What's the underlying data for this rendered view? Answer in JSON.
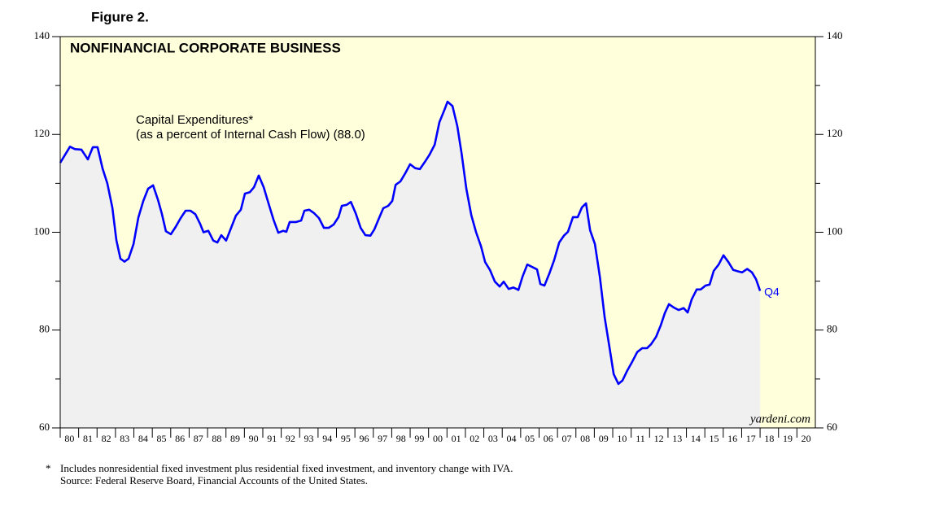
{
  "chart_data": {
    "type": "line",
    "figure_label": "Figure 2.",
    "title": "NONFINANCIAL CORPORATE BUSINESS",
    "annotation": [
      "Capital Expenditures*",
      "(as a percent of Internal Cash Flow) (88.0)"
    ],
    "end_label": "Q4",
    "watermark": "yardeni.com",
    "footnote_mark": "*",
    "footnote": "Includes nonresidential fixed investment plus residential fixed investment, and inventory change with IVA.",
    "source": "Source: Federal Reserve Board, Financial Accounts of the United States.",
    "xlim": [
      1980,
      2021
    ],
    "xticks": [
      {
        "value": 1980,
        "label": "80"
      },
      {
        "value": 1981,
        "label": "81"
      },
      {
        "value": 1982,
        "label": "82"
      },
      {
        "value": 1983,
        "label": "83"
      },
      {
        "value": 1984,
        "label": "84"
      },
      {
        "value": 1985,
        "label": "85"
      },
      {
        "value": 1986,
        "label": "86"
      },
      {
        "value": 1987,
        "label": "87"
      },
      {
        "value": 1988,
        "label": "88"
      },
      {
        "value": 1989,
        "label": "89"
      },
      {
        "value": 1990,
        "label": "90"
      },
      {
        "value": 1991,
        "label": "91"
      },
      {
        "value": 1992,
        "label": "92"
      },
      {
        "value": 1993,
        "label": "93"
      },
      {
        "value": 1994,
        "label": "94"
      },
      {
        "value": 1995,
        "label": "95"
      },
      {
        "value": 1996,
        "label": "96"
      },
      {
        "value": 1997,
        "label": "97"
      },
      {
        "value": 1998,
        "label": "98"
      },
      {
        "value": 1999,
        "label": "99"
      },
      {
        "value": 2000,
        "label": "00"
      },
      {
        "value": 2001,
        "label": "01"
      },
      {
        "value": 2002,
        "label": "02"
      },
      {
        "value": 2003,
        "label": "03"
      },
      {
        "value": 2004,
        "label": "04"
      },
      {
        "value": 2005,
        "label": "05"
      },
      {
        "value": 2006,
        "label": "06"
      },
      {
        "value": 2007,
        "label": "07"
      },
      {
        "value": 2008,
        "label": "08"
      },
      {
        "value": 2009,
        "label": "09"
      },
      {
        "value": 2010,
        "label": "10"
      },
      {
        "value": 2011,
        "label": "11"
      },
      {
        "value": 2012,
        "label": "12"
      },
      {
        "value": 2013,
        "label": "13"
      },
      {
        "value": 2014,
        "label": "14"
      },
      {
        "value": 2015,
        "label": "15"
      },
      {
        "value": 2016,
        "label": "16"
      },
      {
        "value": 2017,
        "label": "17"
      },
      {
        "value": 2018,
        "label": "18"
      },
      {
        "value": 2019,
        "label": "19"
      },
      {
        "value": 2020,
        "label": "20"
      }
    ],
    "ylim": [
      60,
      140
    ],
    "yticks": [
      60,
      80,
      100,
      120,
      140
    ],
    "y_minor_ticks": [
      70,
      90,
      110,
      130
    ],
    "plot_background": "#ffffdc",
    "area_color": "#f0f0f0",
    "series": [
      {
        "name": "Capital Expenditures",
        "color": "#0000ff",
        "x": [
          1980.0,
          1980.53,
          1980.8,
          1981.15,
          1981.5,
          1981.77,
          1982.03,
          1982.3,
          1982.56,
          1982.83,
          1983.05,
          1983.27,
          1983.49,
          1983.71,
          1983.98,
          1984.24,
          1984.51,
          1984.77,
          1985.04,
          1985.3,
          1985.52,
          1985.74,
          1986.01,
          1986.27,
          1986.54,
          1986.81,
          1987.07,
          1987.34,
          1987.6,
          1987.78,
          1988.04,
          1988.31,
          1988.53,
          1988.75,
          1989.01,
          1989.28,
          1989.54,
          1989.81,
          1990.03,
          1990.3,
          1990.52,
          1990.78,
          1991.05,
          1991.31,
          1991.58,
          1991.84,
          1992.11,
          1992.28,
          1992.46,
          1992.81,
          1993.08,
          1993.26,
          1993.52,
          1993.79,
          1994.05,
          1994.32,
          1994.58,
          1994.85,
          1995.11,
          1995.29,
          1995.55,
          1995.78,
          1996.04,
          1996.31,
          1996.57,
          1996.84,
          1997.06,
          1997.28,
          1997.54,
          1997.81,
          1998.03,
          1998.21,
          1998.47,
          1998.74,
          1999.0,
          1999.27,
          1999.53,
          1999.8,
          2000.06,
          2000.33,
          2000.59,
          2000.86,
          2001.03,
          2001.3,
          2001.56,
          2001.79,
          2002.05,
          2002.32,
          2002.58,
          2002.85,
          2003.07,
          2003.33,
          2003.6,
          2003.86,
          2004.08,
          2004.35,
          2004.61,
          2004.88,
          2005.1,
          2005.36,
          2005.63,
          2005.89,
          2006.07,
          2006.29,
          2006.56,
          2006.82,
          2007.09,
          2007.35,
          2007.57,
          2007.84,
          2008.1,
          2008.33,
          2008.55,
          2008.77,
          2009.03,
          2009.3,
          2009.56,
          2009.83,
          2010.05,
          2010.31,
          2010.53,
          2010.8,
          2011.07,
          2011.33,
          2011.6,
          2011.86,
          2012.08,
          2012.35,
          2012.61,
          2012.83,
          2013.05,
          2013.32,
          2013.58,
          2013.85,
          2014.07,
          2014.29,
          2014.56,
          2014.78,
          2015.04,
          2015.26,
          2015.48,
          2015.75,
          2016.01,
          2016.28,
          2016.54,
          2016.81,
          2017.03,
          2017.3,
          2017.56,
          2017.78,
          2018.0
        ],
        "values": [
          114.2,
          117.5,
          117,
          116.9,
          114.9,
          117.4,
          117.4,
          113,
          110,
          105,
          98.4,
          94.6,
          94,
          94.6,
          97.6,
          103,
          106.4,
          108.9,
          109.6,
          106.7,
          103.8,
          100.2,
          99.6,
          101.1,
          102.9,
          104.4,
          104.4,
          103.7,
          101.7,
          100,
          100.3,
          98.3,
          97.9,
          99.4,
          98.3,
          100.9,
          103.4,
          104.6,
          107.9,
          108.2,
          109.2,
          111.6,
          109.2,
          105.9,
          102.6,
          99.9,
          100.3,
          100.1,
          102.1,
          102.1,
          102.4,
          104.4,
          104.6,
          103.9,
          102.9,
          100.9,
          100.9,
          101.6,
          103.1,
          105.4,
          105.6,
          106.2,
          103.9,
          100.9,
          99.4,
          99.3,
          100.6,
          102.6,
          104.9,
          105.4,
          106.4,
          109.7,
          110.4,
          112.1,
          113.9,
          113.1,
          112.9,
          114.4,
          115.9,
          117.9,
          122.5,
          125,
          126.7,
          125.8,
          121.7,
          116.2,
          108.9,
          103.5,
          100,
          97.1,
          93.9,
          92.3,
          89.9,
          88.9,
          89.9,
          88.4,
          88.7,
          88.2,
          90.9,
          93.4,
          92.9,
          92.4,
          89.4,
          89.1,
          91.6,
          94.3,
          97.9,
          99.3,
          100.1,
          103.1,
          103.1,
          105.1,
          105.9,
          100.4,
          97.6,
          90.9,
          82.6,
          76.3,
          71,
          69,
          69.7,
          71.8,
          73.6,
          75.5,
          76.3,
          76.3,
          77.1,
          78.6,
          81,
          83.5,
          85.3,
          84.6,
          84.1,
          84.5,
          83.6,
          86.3,
          88.3,
          88.3,
          89.1,
          89.3,
          92.1,
          93.4,
          95.3,
          93.9,
          92.3,
          92,
          91.8,
          92.5,
          91.8,
          90.4,
          88.0
        ]
      }
    ]
  }
}
